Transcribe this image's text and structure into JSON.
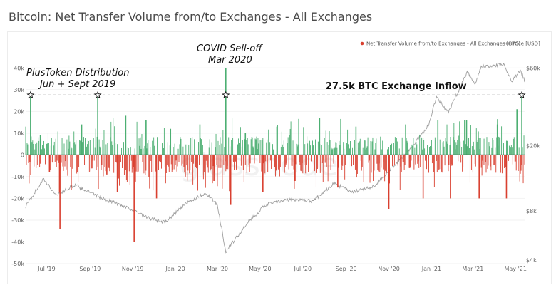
{
  "header": {
    "title": "Bitcoin: Net Transfer Volume from/to Exchanges - All Exchanges"
  },
  "legend": [
    {
      "label": "Net Transfer Volume from/to Exchanges - All Exchanges [BTC]",
      "color": "#d94030"
    },
    {
      "label": "Price [USD]",
      "color": "#9e9e9e"
    }
  ],
  "watermark": "glassnode",
  "annotations": {
    "plustoken": [
      "PlusToken Distribution",
      "Jun + Sept 2019"
    ],
    "covid": [
      "COVID Sell-off",
      "Mar 2020"
    ],
    "inflow": "27.5k BTC Exchange Inflow"
  },
  "chart_data": {
    "type": "bar",
    "title": "Bitcoin: Net Transfer Volume from/to Exchanges - All Exchanges",
    "colors": {
      "inflow": "#4caf72",
      "outflow": "#d94030",
      "price": "#9e9e9e",
      "reference": "#333333"
    },
    "y_left": {
      "ticks": [
        -50000,
        -40000,
        -30000,
        -20000,
        -10000,
        0,
        10000,
        20000,
        30000,
        40000
      ],
      "tick_labels": [
        "-50k",
        "-40k",
        "-30k",
        "-20k",
        "-10k",
        "0",
        "10k",
        "20k",
        "30k",
        "40k"
      ],
      "range": [
        -50000,
        45000
      ]
    },
    "y_right": {
      "scale": "log",
      "ticks": [
        4000,
        8000,
        20000,
        60000
      ],
      "tick_labels": [
        "$4k",
        "$8k",
        "$20k",
        "$60k"
      ],
      "range": [
        3800,
        70000
      ]
    },
    "x_range": [
      "2019-06-01",
      "2021-05-14"
    ],
    "x_ticks": [
      {
        "date": "2019-07-01",
        "label": "Jul '19"
      },
      {
        "date": "2019-09-01",
        "label": "Sep '19"
      },
      {
        "date": "2019-11-01",
        "label": "Nov '19"
      },
      {
        "date": "2020-01-01",
        "label": "Jan '20"
      },
      {
        "date": "2020-03-01",
        "label": "Mar '20"
      },
      {
        "date": "2020-05-01",
        "label": "May '20"
      },
      {
        "date": "2020-07-01",
        "label": "Jul '20"
      },
      {
        "date": "2020-09-01",
        "label": "Sep '20"
      },
      {
        "date": "2020-11-01",
        "label": "Nov '20"
      },
      {
        "date": "2021-01-01",
        "label": "Jan '21"
      },
      {
        "date": "2021-03-01",
        "label": "Mar '21"
      },
      {
        "date": "2021-05-01",
        "label": "May '21"
      }
    ],
    "reference_line": {
      "value": 27500,
      "label": "27.5k BTC Exchange Inflow"
    },
    "markers": [
      {
        "date": "2019-06-08",
        "value": 27500
      },
      {
        "date": "2019-09-12",
        "value": 27500
      },
      {
        "date": "2020-03-13",
        "value": 27500
      },
      {
        "date": "2021-05-10",
        "value": 27500
      }
    ],
    "net_flow_series": {
      "name": "Net Transfer Volume from/to Exchanges - All Exchanges [BTC]",
      "points": [
        [
          "2019-06-08",
          27500
        ],
        [
          "2019-06-22",
          9000
        ],
        [
          "2019-07-05",
          -8000
        ],
        [
          "2019-07-20",
          -34000
        ],
        [
          "2019-08-05",
          -16000
        ],
        [
          "2019-08-20",
          14000
        ],
        [
          "2019-09-12",
          27500
        ],
        [
          "2019-09-25",
          -9000
        ],
        [
          "2019-10-10",
          -17000
        ],
        [
          "2019-10-22",
          18000
        ],
        [
          "2019-11-03",
          -40000
        ],
        [
          "2019-11-20",
          16000
        ],
        [
          "2019-12-05",
          -20000
        ],
        [
          "2019-12-25",
          12000
        ],
        [
          "2020-01-15",
          -10000
        ],
        [
          "2020-02-05",
          14000
        ],
        [
          "2020-02-25",
          -12000
        ],
        [
          "2020-03-13",
          40000
        ],
        [
          "2020-03-20",
          -23000
        ],
        [
          "2020-04-10",
          10000
        ],
        [
          "2020-05-05",
          -17000
        ],
        [
          "2020-05-25",
          13000
        ],
        [
          "2020-06-20",
          -12000
        ],
        [
          "2020-07-25",
          17000
        ],
        [
          "2020-08-20",
          -15000
        ],
        [
          "2020-09-15",
          13000
        ],
        [
          "2020-10-10",
          -12000
        ],
        [
          "2020-11-01",
          -25000
        ],
        [
          "2020-11-25",
          14000
        ],
        [
          "2020-12-20",
          -20000
        ],
        [
          "2021-01-10",
          16000
        ],
        [
          "2021-01-28",
          -20000
        ],
        [
          "2021-02-20",
          16000
        ],
        [
          "2021-03-10",
          -20000
        ],
        [
          "2021-04-05",
          14000
        ],
        [
          "2021-04-18",
          -20000
        ],
        [
          "2021-05-03",
          21000
        ],
        [
          "2021-05-10",
          27500
        ]
      ]
    },
    "price_series": {
      "name": "Price [USD]",
      "points": [
        [
          "2019-06-01",
          8500
        ],
        [
          "2019-06-26",
          12500
        ],
        [
          "2019-07-15",
          10000
        ],
        [
          "2019-08-10",
          11500
        ],
        [
          "2019-09-20",
          9500
        ],
        [
          "2019-10-25",
          8400
        ],
        [
          "2019-11-20",
          7300
        ],
        [
          "2019-12-17",
          6800
        ],
        [
          "2020-01-15",
          8800
        ],
        [
          "2020-02-13",
          10300
        ],
        [
          "2020-03-01",
          8700
        ],
        [
          "2020-03-13",
          4500
        ],
        [
          "2020-04-15",
          6900
        ],
        [
          "2020-05-10",
          8800
        ],
        [
          "2020-06-15",
          9400
        ],
        [
          "2020-07-15",
          9200
        ],
        [
          "2020-08-15",
          11800
        ],
        [
          "2020-09-10",
          10400
        ],
        [
          "2020-10-10",
          11300
        ],
        [
          "2020-11-10",
          15300
        ],
        [
          "2020-12-01",
          19000
        ],
        [
          "2020-12-28",
          27000
        ],
        [
          "2021-01-08",
          40000
        ],
        [
          "2021-01-25",
          32000
        ],
        [
          "2021-02-21",
          57000
        ],
        [
          "2021-03-05",
          48000
        ],
        [
          "2021-03-13",
          61000
        ],
        [
          "2021-04-14",
          63000
        ],
        [
          "2021-04-25",
          50000
        ],
        [
          "2021-05-08",
          58000
        ],
        [
          "2021-05-14",
          50000
        ]
      ]
    }
  }
}
